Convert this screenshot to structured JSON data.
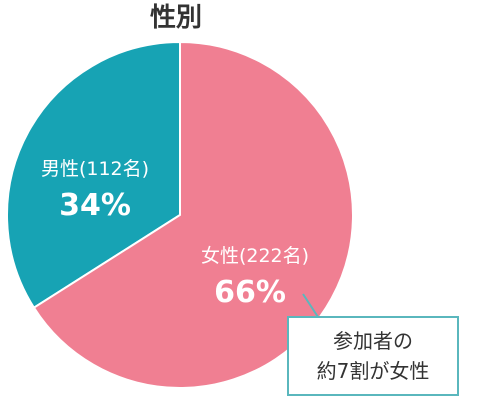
{
  "chart_data": {
    "type": "pie",
    "title": "性別",
    "slices": [
      {
        "name": "男性",
        "count_label": "(112名)",
        "value": 34,
        "pct_label": "34%",
        "color": "#17a3b4"
      },
      {
        "name": "女性",
        "count_label": "(222名)",
        "value": 66,
        "pct_label": "66%",
        "color": "#f07f92"
      }
    ],
    "annotation": {
      "line1": "参加者の",
      "line2": "約7割が女性",
      "border_color": "#5ab7bd"
    }
  }
}
